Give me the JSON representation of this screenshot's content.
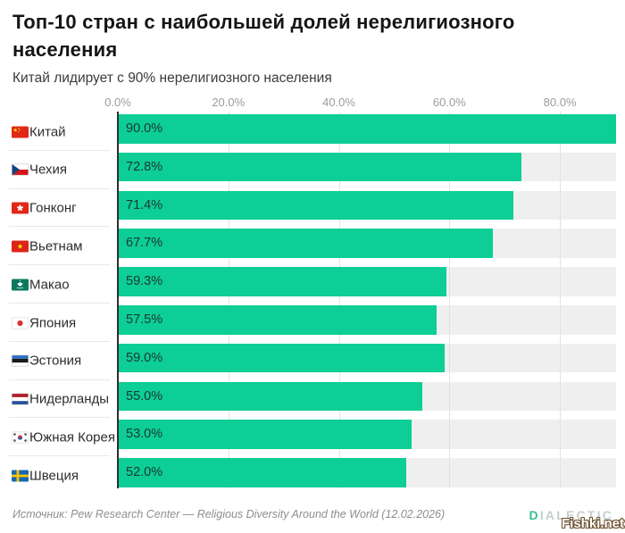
{
  "title": "Топ-10 стран с наибольшей долей нерелигиозного населения",
  "title_lines": [
    "Топ-10 стран с наибольшей долей нерелигиозного",
    "населения"
  ],
  "subtitle": "Китай лидирует с 90% нерелигиозного населения",
  "chart_data": {
    "type": "bar",
    "orientation": "horizontal",
    "title": "Топ-10 стран с наибольшей долей нерелигиозного населения",
    "subtitle": "Китай лидирует с 90% нерелигиозного населения",
    "categories": [
      "Китай",
      "Чехия",
      "Гонконг",
      "Вьетнам",
      "Макао",
      "Япония",
      "Эстония",
      "Нидерланды",
      "Южная Корея",
      "Швеция"
    ],
    "values": [
      90.0,
      72.8,
      71.4,
      67.7,
      59.3,
      57.5,
      59.0,
      55.0,
      53.0,
      52.0
    ],
    "value_labels": [
      "90.0%",
      "72.8%",
      "71.4%",
      "67.7%",
      "59.3%",
      "57.5%",
      "59.0%",
      "55.0%",
      "53.0%",
      "52.0%"
    ],
    "flags": [
      "china",
      "czechia",
      "hong-kong",
      "vietnam",
      "macao",
      "japan",
      "estonia",
      "netherlands",
      "south-korea",
      "sweden"
    ],
    "x_ticks": [
      {
        "value": 0,
        "label": "0.0%"
      },
      {
        "value": 20,
        "label": "20.0%"
      },
      {
        "value": 40,
        "label": "40.0%"
      },
      {
        "value": 60,
        "label": "60.0%"
      },
      {
        "value": 80,
        "label": "80.0%"
      }
    ],
    "xlim": [
      0,
      90
    ],
    "grid": true,
    "legend": false,
    "bar_color": "#0cce96",
    "track_color": "#efefef",
    "axis_color": "#2e2e2e"
  },
  "footer": {
    "source": "Источник: Pew Research Center — Religious Diversity Around the World (12.02.2026)",
    "logo_first_letter": "D",
    "logo_rest": "IALECTIC",
    "watermark": "Fishki.net"
  }
}
